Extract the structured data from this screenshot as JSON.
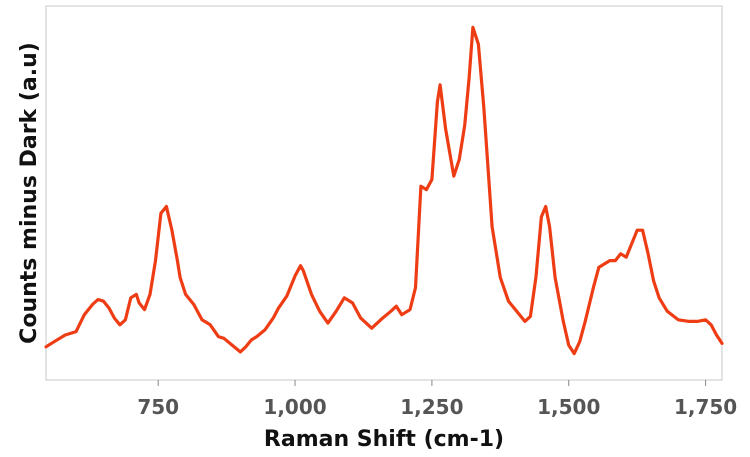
{
  "chart_data": {
    "type": "line",
    "title": "",
    "xlabel": "Raman Shift (cm-1)",
    "ylabel": "Counts minus Dark (a.u)",
    "xlim": [
      545,
      1780
    ],
    "ylim": [
      0,
      1
    ],
    "xticks": [
      750,
      1000,
      1250,
      1500,
      1750
    ],
    "xtick_labels": [
      "750",
      "1,000",
      "1,250",
      "1,500",
      "1,750"
    ],
    "yticks_shown": false,
    "grid": false,
    "legend": "none",
    "series": [
      {
        "color": "#ee3d14",
        "x": [
          545,
          560,
          580,
          600,
          615,
          630,
          640,
          650,
          660,
          670,
          680,
          690,
          700,
          710,
          715,
          725,
          735,
          745,
          755,
          765,
          775,
          785,
          790,
          800,
          815,
          830,
          845,
          860,
          870,
          885,
          900,
          910,
          920,
          930,
          945,
          960,
          970,
          985,
          1000,
          1010,
          1015,
          1030,
          1045,
          1060,
          1075,
          1090,
          1105,
          1120,
          1140,
          1160,
          1175,
          1185,
          1195,
          1210,
          1220,
          1230,
          1240,
          1250,
          1260,
          1265,
          1275,
          1290,
          1300,
          1310,
          1318,
          1325,
          1335,
          1345,
          1360,
          1375,
          1390,
          1405,
          1420,
          1430,
          1440,
          1450,
          1458,
          1465,
          1475,
          1490,
          1500,
          1510,
          1520,
          1530,
          1545,
          1555,
          1565,
          1575,
          1585,
          1595,
          1605,
          1615,
          1625,
          1635,
          1645,
          1655,
          1665,
          1680,
          1700,
          1720,
          1735,
          1750,
          1760,
          1770,
          1780
        ],
        "values": [
          0.045,
          0.06,
          0.08,
          0.09,
          0.14,
          0.17,
          0.185,
          0.18,
          0.16,
          0.13,
          0.11,
          0.125,
          0.19,
          0.2,
          0.175,
          0.155,
          0.2,
          0.3,
          0.44,
          0.46,
          0.39,
          0.3,
          0.25,
          0.2,
          0.17,
          0.125,
          0.11,
          0.075,
          0.07,
          0.05,
          0.03,
          0.045,
          0.065,
          0.075,
          0.095,
          0.13,
          0.16,
          0.195,
          0.255,
          0.285,
          0.27,
          0.2,
          0.15,
          0.115,
          0.15,
          0.19,
          0.175,
          0.13,
          0.1,
          0.13,
          0.15,
          0.165,
          0.14,
          0.155,
          0.22,
          0.52,
          0.51,
          0.54,
          0.77,
          0.82,
          0.69,
          0.55,
          0.6,
          0.7,
          0.84,
          0.99,
          0.94,
          0.75,
          0.4,
          0.25,
          0.18,
          0.15,
          0.12,
          0.135,
          0.25,
          0.43,
          0.46,
          0.4,
          0.25,
          0.12,
          0.05,
          0.025,
          0.06,
          0.12,
          0.22,
          0.28,
          0.29,
          0.3,
          0.3,
          0.32,
          0.31,
          0.35,
          0.39,
          0.39,
          0.32,
          0.24,
          0.19,
          0.15,
          0.125,
          0.12,
          0.12,
          0.125,
          0.11,
          0.08,
          0.055
        ]
      }
    ]
  }
}
